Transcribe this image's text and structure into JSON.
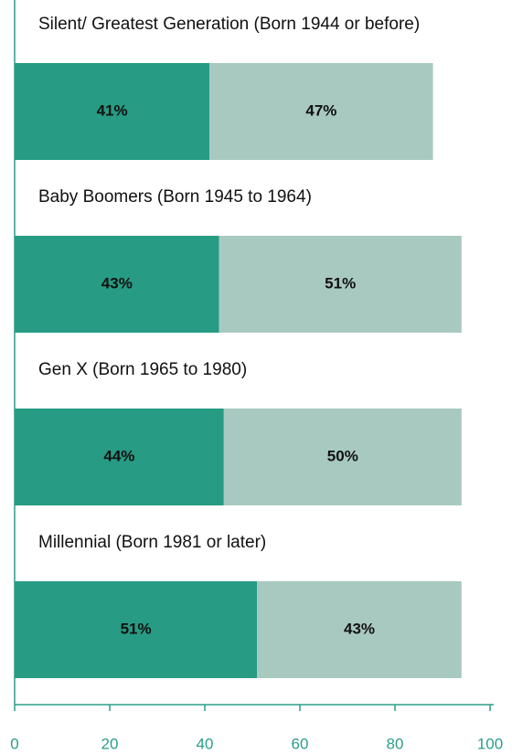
{
  "chart_data": {
    "type": "bar",
    "orientation": "horizontal",
    "stacked": true,
    "categories": [
      "Silent/ Greatest Generation (Born 1944 or before)",
      "Baby Boomers (Born 1945 to 1964)",
      "Gen X (Born 1965 to 1980)",
      "Millennial (Born 1981 or later)"
    ],
    "series": [
      {
        "color": "#279b83",
        "values": [
          41,
          43,
          44,
          51
        ],
        "value_labels": [
          "41%",
          "43%",
          "44%",
          "51%"
        ]
      },
      {
        "color": "#a8c9c0",
        "values": [
          47,
          51,
          50,
          43
        ],
        "value_labels": [
          "47%",
          "51%",
          "50%",
          "43%"
        ]
      }
    ],
    "xlim": [
      0,
      100
    ],
    "xticks": [
      0,
      20,
      40,
      60,
      80,
      100
    ],
    "axis_color": "#2a9d8a"
  }
}
